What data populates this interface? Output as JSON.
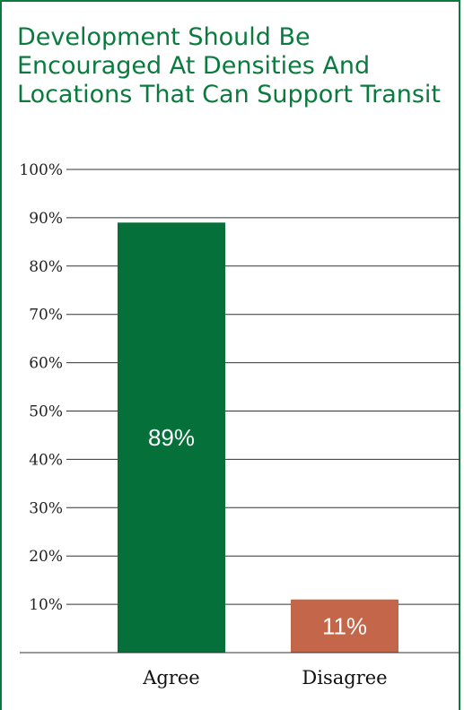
{
  "chart_data": {
    "type": "bar",
    "title": "Development Should Be Encouraged At Densities And Locations That Can Support Transit",
    "categories": [
      "Agree",
      "Disagree"
    ],
    "values": [
      89,
      11
    ],
    "data_labels": [
      "89%",
      "11%"
    ],
    "ylim": [
      0,
      100
    ],
    "yticks": [
      10,
      20,
      30,
      40,
      50,
      60,
      70,
      80,
      90,
      100
    ],
    "ytick_labels": [
      "10%",
      "20%",
      "30%",
      "40%",
      "50%",
      "60%",
      "70%",
      "80%",
      "90%",
      "100%"
    ],
    "grid": true,
    "colors": [
      "#05703a",
      "#c4664a"
    ]
  }
}
